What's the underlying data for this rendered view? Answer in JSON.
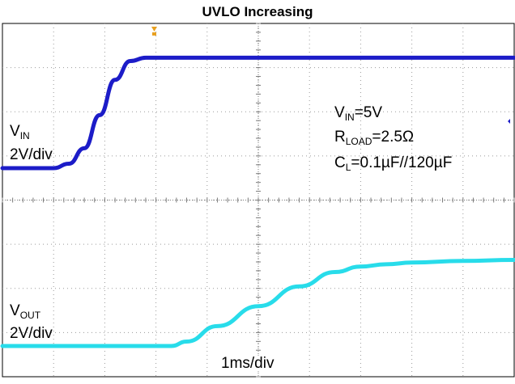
{
  "chart_data": {
    "type": "line",
    "title": "UVLO Increasing",
    "grid": true,
    "timebase_label": "1ms/div",
    "channels": [
      {
        "name": "VIN",
        "name_main": "V",
        "name_sub": "IN",
        "scale_label": "2V/div",
        "color": "#1c1cc8",
        "x_ms": [
          0,
          1.0,
          1.3,
          1.6,
          1.9,
          2.2,
          2.5,
          2.8,
          3.2,
          4.0,
          6.0,
          8.0,
          10.0
        ],
        "v_volts": [
          0.0,
          0.0,
          0.2,
          0.9,
          2.4,
          4.0,
          4.85,
          5.0,
          5.0,
          5.0,
          5.0,
          5.0,
          5.0
        ]
      },
      {
        "name": "VOUT",
        "name_main": "V",
        "name_sub": "OUT",
        "scale_label": "2V/div",
        "color": "#28dcea",
        "x_ms": [
          0,
          1.0,
          2.0,
          3.3,
          3.6,
          4.2,
          5.0,
          5.8,
          6.5,
          7.0,
          7.5,
          8.0,
          9.0,
          10.0
        ],
        "v_volts": [
          0.0,
          0.0,
          0.0,
          0.0,
          0.2,
          0.9,
          1.8,
          2.7,
          3.35,
          3.6,
          3.7,
          3.78,
          3.85,
          3.9
        ]
      }
    ],
    "annotations": {
      "vin": {
        "main": "V",
        "sub": "IN",
        "rest": "=5V"
      },
      "rload": {
        "main": "R",
        "sub": "LOAD",
        "rest": "=2.5Ω"
      },
      "cl": {
        "main": "C",
        "sub": "L",
        "rest": "=0.1µF//120µF"
      }
    }
  }
}
